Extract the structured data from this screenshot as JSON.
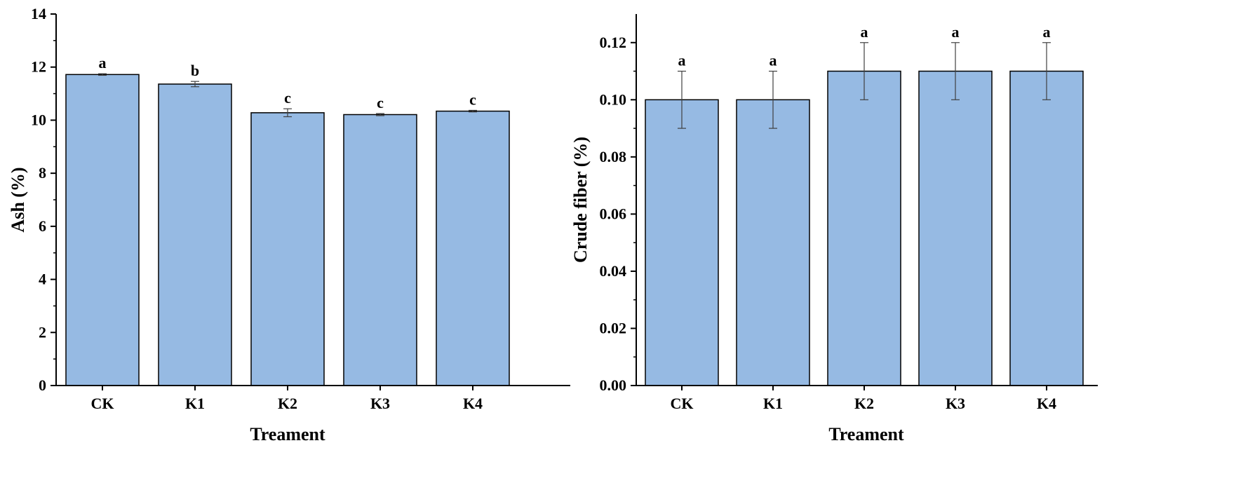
{
  "colors": {
    "bar_fill": "#96bae3",
    "bar_stroke": "#000000",
    "axis": "#000000",
    "error_bar": "#404040"
  },
  "chart_data": [
    {
      "type": "bar",
      "xlabel": "Treament",
      "ylabel": "Ash (%)",
      "categories": [
        "CK",
        "K1",
        "K2",
        "K3",
        "K4"
      ],
      "values": [
        11.72,
        11.36,
        10.28,
        10.21,
        10.34
      ],
      "errors": [
        0.03,
        0.1,
        0.15,
        0.04,
        0.03
      ],
      "significance": [
        "a",
        "b",
        "c",
        "c",
        "c"
      ],
      "ylim": [
        0,
        14
      ],
      "yticks": [
        0,
        2,
        4,
        6,
        8,
        10,
        12,
        14
      ],
      "ytick_labels": [
        "0",
        "2",
        "4",
        "6",
        "8",
        "10",
        "12",
        "14"
      ],
      "grid": false
    },
    {
      "type": "bar",
      "xlabel": "Treament",
      "ylabel": "Crude fiber (%)",
      "categories": [
        "CK",
        "K1",
        "K2",
        "K3",
        "K4"
      ],
      "values": [
        0.1,
        0.1,
        0.11,
        0.11,
        0.11
      ],
      "errors": [
        0.01,
        0.01,
        0.01,
        0.01,
        0.01
      ],
      "significance": [
        "a",
        "a",
        "a",
        "a",
        "a"
      ],
      "ylim": [
        0,
        0.13
      ],
      "yticks": [
        0,
        0.02,
        0.04,
        0.06,
        0.08,
        0.1,
        0.12
      ],
      "ytick_labels": [
        "0.00",
        "0.02",
        "0.04",
        "0.06",
        "0.08",
        "0.10",
        "0.12"
      ],
      "grid": false
    }
  ]
}
